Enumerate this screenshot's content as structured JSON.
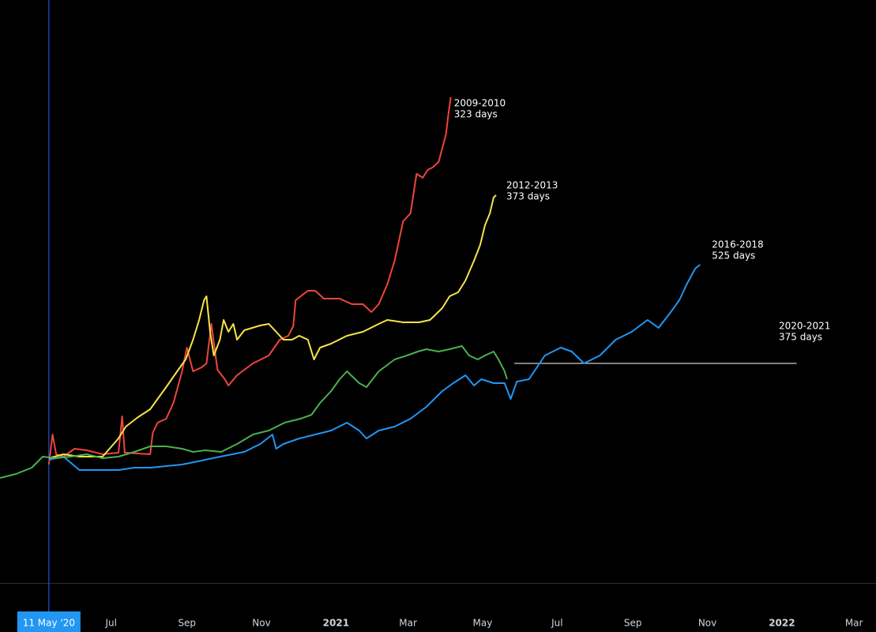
{
  "chart_data": {
    "type": "line",
    "xlim": [
      -40,
      677
    ],
    "ylim": [
      0,
      738
    ],
    "xticks": [
      {
        "value": 0,
        "label": "11 May '20"
      },
      {
        "value": 51,
        "label": "Jul"
      },
      {
        "value": 113,
        "label": "Sep"
      },
      {
        "value": 174,
        "label": "Nov"
      },
      {
        "value": 235,
        "label": "2021"
      },
      {
        "value": 294,
        "label": "Mar"
      },
      {
        "value": 355,
        "label": "May"
      },
      {
        "value": 416,
        "label": "Jul"
      },
      {
        "value": 478,
        "label": "Sep"
      },
      {
        "value": 539,
        "label": "Nov"
      },
      {
        "value": 600,
        "label": "2022"
      },
      {
        "value": 659,
        "label": "Mar"
      }
    ],
    "series": [
      {
        "name": "2009-2010",
        "days": "323 days",
        "color": "#f0453a",
        "x": [
          0,
          3,
          6,
          12,
          21,
          31,
          44,
          57,
          60,
          62,
          83,
          85,
          89,
          96,
          102,
          109,
          113,
          118,
          125,
          129,
          133,
          138,
          144,
          147,
          154,
          167,
          180,
          189,
          196,
          200,
          202,
          212,
          218,
          225,
          238,
          248,
          257,
          264,
          270,
          277,
          283,
          290,
          296,
          301,
          306,
          310,
          314,
          319,
          325,
          327,
          329
        ],
        "values": [
          150,
          188,
          163,
          160,
          170,
          168,
          163,
          165,
          211,
          165,
          163,
          190,
          203,
          208,
          228,
          268,
          298,
          268,
          273,
          278,
          328,
          270,
          258,
          250,
          263,
          278,
          288,
          308,
          313,
          325,
          358,
          370,
          370,
          360,
          360,
          353,
          353,
          343,
          353,
          378,
          408,
          458,
          468,
          518,
          513,
          523,
          526,
          533,
          568,
          593,
          615
        ]
      },
      {
        "name": "2012-2013",
        "days": "373 days",
        "color": "#f7e446",
        "x": [
          0,
          12,
          25,
          44,
          57,
          63,
          73,
          83,
          89,
          96,
          105,
          112,
          118,
          123,
          127,
          129,
          132,
          135,
          140,
          143,
          147,
          151,
          154,
          160,
          173,
          180,
          186,
          192,
          199,
          205,
          212,
          217,
          222,
          231,
          244,
          257,
          270,
          277,
          290,
          303,
          312,
          322,
          328,
          335,
          341,
          348,
          353,
          357,
          361,
          364,
          366
        ],
        "values": [
          158,
          163,
          160,
          160,
          183,
          198,
          210,
          220,
          233,
          248,
          268,
          283,
          308,
          333,
          358,
          363,
          318,
          288,
          308,
          333,
          318,
          328,
          308,
          320,
          326,
          328,
          318,
          308,
          308,
          313,
          308,
          283,
          298,
          303,
          313,
          318,
          328,
          333,
          330,
          330,
          333,
          348,
          363,
          368,
          383,
          408,
          428,
          453,
          468,
          488,
          491
        ]
      },
      {
        "name": "2016-2018",
        "days": "525 days",
        "color": "#2196f3",
        "x": [
          0,
          12,
          25,
          31,
          44,
          57,
          70,
          83,
          96,
          109,
          122,
          134,
          147,
          160,
          173,
          183,
          186,
          192,
          205,
          218,
          231,
          244,
          254,
          260,
          270,
          283,
          296,
          309,
          322,
          331,
          341,
          348,
          354,
          364,
          373,
          378,
          383,
          393,
          406,
          419,
          428,
          438,
          451,
          464,
          477,
          490,
          499,
          509,
          516,
          522,
          529,
          533
        ],
        "values": [
          156,
          160,
          143,
          143,
          143,
          143,
          146,
          146,
          148,
          150,
          154,
          158,
          162,
          166,
          176,
          188,
          170,
          176,
          183,
          188,
          193,
          203,
          193,
          183,
          193,
          198,
          208,
          223,
          243,
          253,
          263,
          250,
          258,
          253,
          253,
          233,
          255,
          258,
          288,
          298,
          293,
          278,
          288,
          308,
          318,
          333,
          323,
          343,
          358,
          378,
          398,
          403
        ]
      },
      {
        "name": "2020-2021",
        "days": "375 days",
        "color": "#4caf50",
        "x": [
          -40,
          -27,
          -14,
          -5,
          5,
          18,
          31,
          44,
          57,
          70,
          83,
          96,
          109,
          118,
          128,
          141,
          154,
          167,
          180,
          193,
          206,
          215,
          222,
          231,
          238,
          244,
          254,
          260,
          270,
          277,
          283,
          293,
          302,
          309,
          319,
          328,
          338,
          344,
          351,
          357,
          364,
          368,
          373,
          375
        ],
        "values": [
          133,
          138,
          146,
          160,
          158,
          160,
          163,
          158,
          160,
          166,
          173,
          173,
          170,
          166,
          168,
          166,
          176,
          188,
          193,
          203,
          208,
          213,
          228,
          243,
          258,
          268,
          253,
          248,
          268,
          276,
          283,
          288,
          293,
          296,
          293,
          296,
          300,
          288,
          283,
          288,
          293,
          283,
          268,
          258
        ]
      }
    ],
    "reference_line": {
      "x": [
        381,
        612
      ],
      "y": 278
    }
  }
}
